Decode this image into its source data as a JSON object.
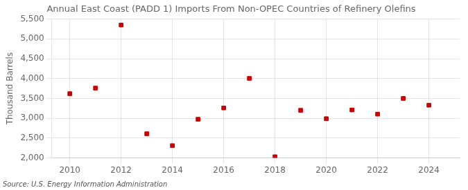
{
  "chart_data": {
    "type": "scatter",
    "title": "Annual East Coast (PADD 1) Imports From Non-OPEC Countries of Refinery Olefins",
    "ylabel": "Thousand Barrels",
    "annotations": [
      "Source: U.S. Energy Information Administration"
    ],
    "x": [
      2010,
      2011,
      2012,
      2013,
      2014,
      2015,
      2016,
      2017,
      2018,
      2019,
      2020,
      2021,
      2022,
      2023,
      2024
    ],
    "values": [
      3620,
      3760,
      5350,
      2610,
      2310,
      2975,
      3260,
      4005,
      2030,
      3200,
      2990,
      3210,
      3105,
      3500,
      3330
    ],
    "color": "#cc0000",
    "marker": "square",
    "xlim": [
      2009.3,
      2025.2
    ],
    "xticks": [
      2010,
      2012,
      2014,
      2016,
      2018,
      2020,
      2022,
      2024
    ],
    "ylim": [
      2000,
      5500
    ],
    "yticks": [
      {
        "value": 2000,
        "label": "2,000"
      },
      {
        "value": 2500,
        "label": "2,500"
      },
      {
        "value": 3000,
        "label": "3,000"
      },
      {
        "value": 3500,
        "label": "3,500"
      },
      {
        "value": 4000,
        "label": "4,000"
      },
      {
        "value": 4500,
        "label": "4,500"
      },
      {
        "value": 5000,
        "label": "5,000"
      },
      {
        "value": 5500,
        "label": "5,500"
      }
    ],
    "grid": true
  }
}
